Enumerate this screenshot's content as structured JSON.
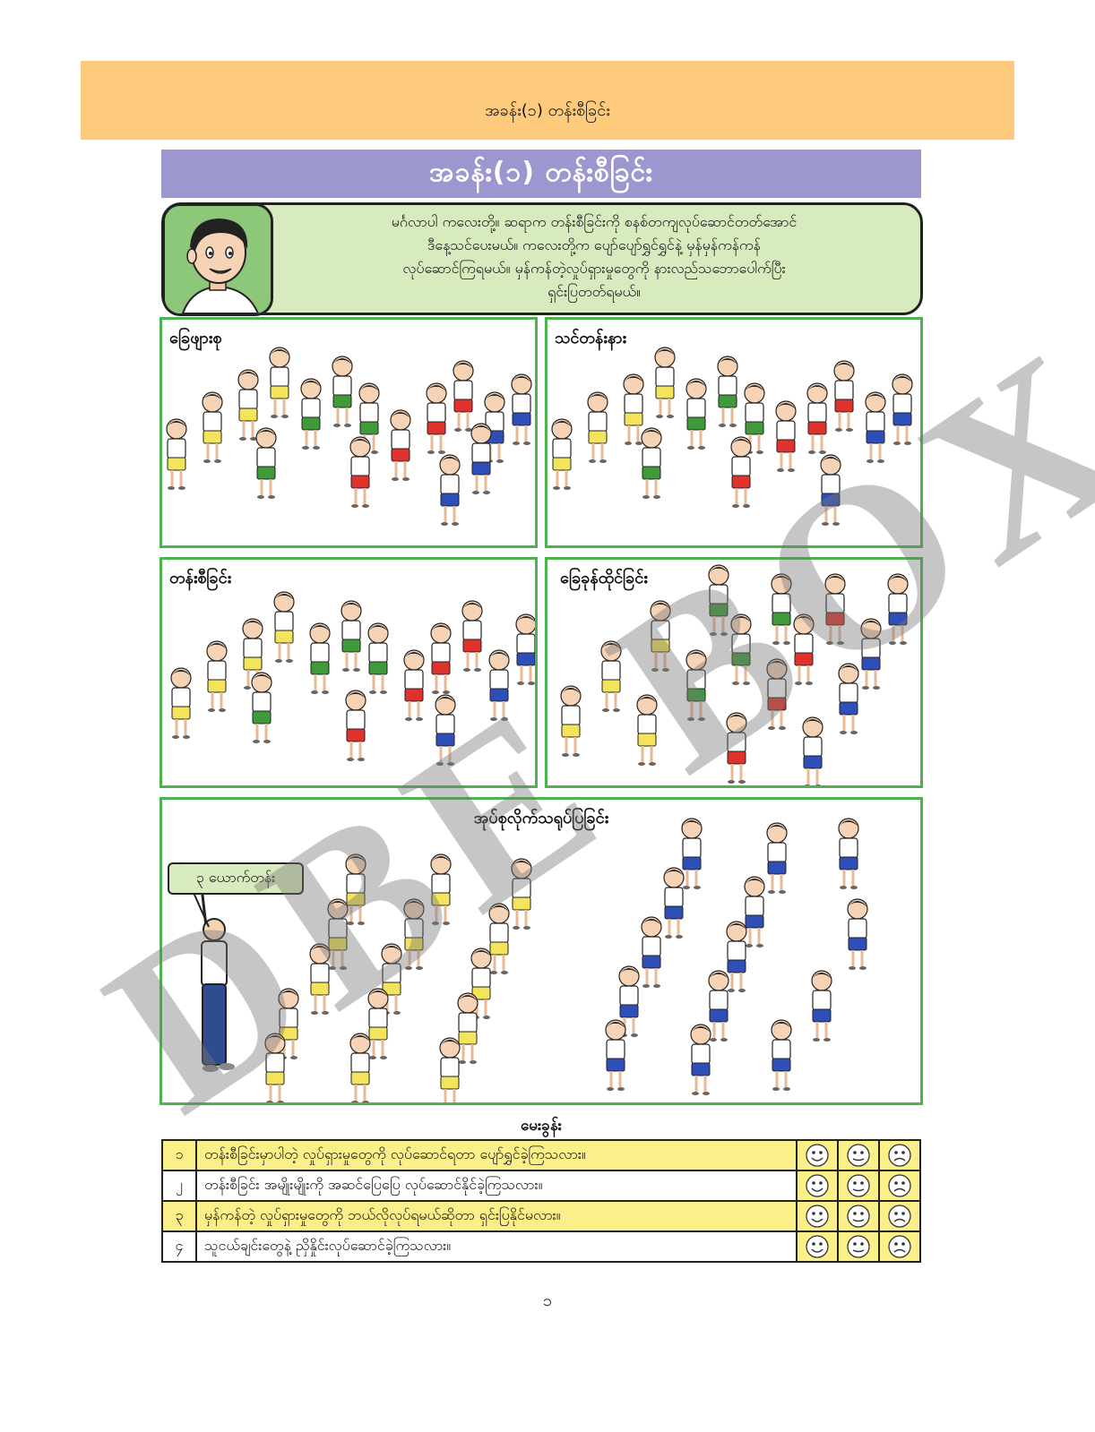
{
  "header": {
    "text": "အခန်း(၁) တန်းစီခြင်း"
  },
  "title": "အခန်း(၁)  တန်းစီခြင်း",
  "intro": {
    "lines": [
      "မင်္ဂလာပါ ကလေးတို့။ ဆရာက တန်းစီခြင်းကို စနစ်တကျလုပ်ဆောင်တတ်အောင်",
      "ဒီနေ့သင်ပေးမယ်။ ကလေးတို့က ပျော်ပျော်ရွှင်ရွှင်နဲ့ မှန်မှန်ကန်ကန်",
      "လုပ်ဆောင်ကြရမယ်။ မှန်ကန်တဲ့လှုပ်ရှားမှုတွေကို နားလည်သဘောပေါက်ပြီး",
      "ရှင်းပြတတ်ရမယ်။"
    ]
  },
  "panels": [
    {
      "label": "ခြေဖျားစု"
    },
    {
      "label": "သင်တန်းနား"
    },
    {
      "label": "တန်းစီခြင်း"
    },
    {
      "label": "ခြေခုန်ထိုင်ခြင်း"
    },
    {
      "label": "အုပ်စုလိုက်သရုပ်ပြခြင်း"
    }
  ],
  "bubble": "၃ ယောက်တန်း",
  "questions": {
    "heading": "မေးခွန်း",
    "rows": [
      {
        "num": "၁",
        "text": "တန်းစီခြင်းမှာပါတဲ့ လှုပ်ရှားမှုတွေကို လုပ်ဆောင်ရတာ ပျော်ရွှင်ခဲ့ကြသလား။"
      },
      {
        "num": "၂",
        "text": "တန်းစီခြင်း အမျိုးမျိုးကို အဆင်ပြေပြေ လုပ်ဆောင်နိုင်ခဲ့ကြသလား။"
      },
      {
        "num": "၃",
        "text": "မှန်ကန်တဲ့ လှုပ်ရှားမှုတွေကို ဘယ်လိုလုပ်ရမယ်ဆိုတာ ရှင်းပြနိုင်မလား။"
      },
      {
        "num": "၄",
        "text": "သူငယ်ချင်းတွေနဲ့ ညှိနှိုင်းလုပ်ဆောင်ခဲ့ကြသလား။"
      }
    ]
  },
  "page_number": "၁",
  "watermark": "DBE BOX",
  "colors": {
    "header_band": "#fdcb7b",
    "title_bar": "#9d97cf",
    "intro_bg": "#d8ebbf",
    "panel_border": "#4db34e",
    "highlight_row": "#fbef8a"
  }
}
